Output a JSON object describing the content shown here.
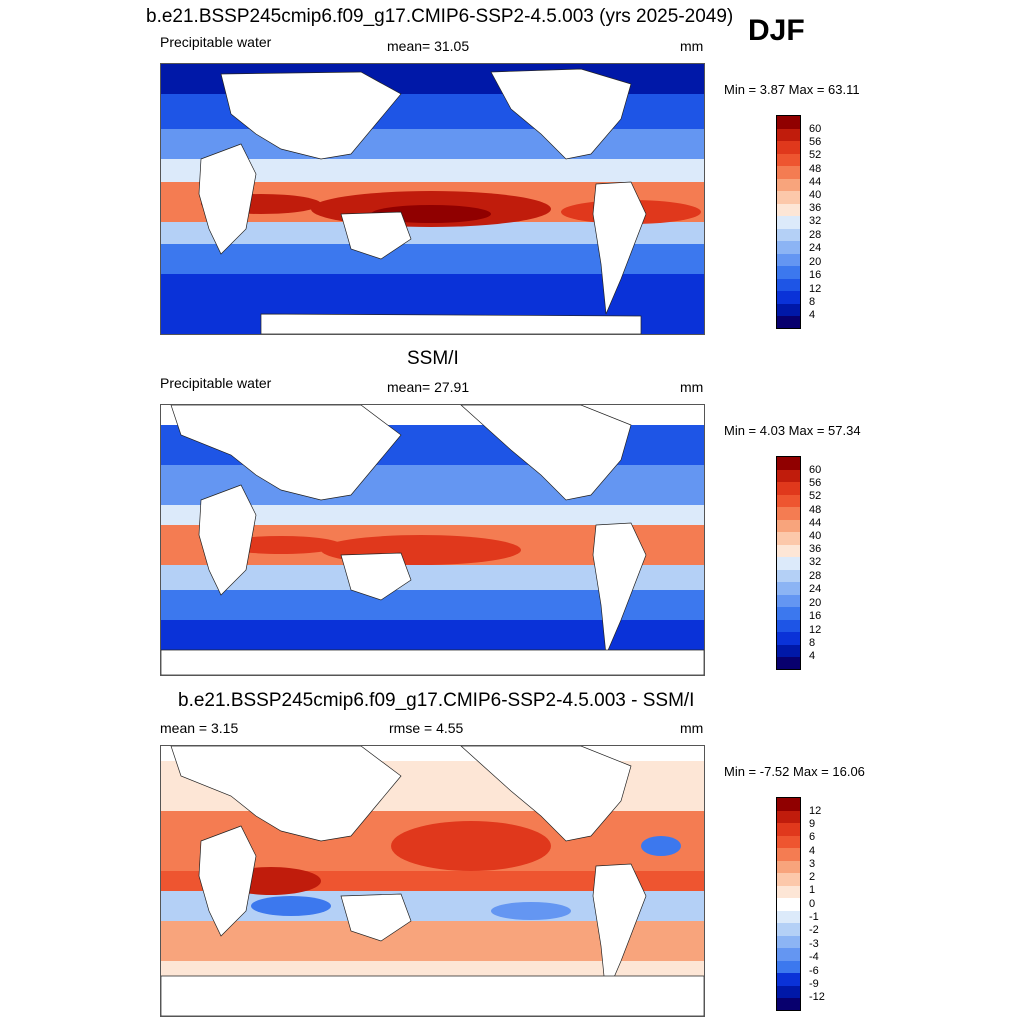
{
  "season": "DJF",
  "colors": {
    "abs_scale": [
      "#08006e",
      "#0018a8",
      "#0a32d8",
      "#1e55e6",
      "#3c78ee",
      "#6496f2",
      "#8cb4f4",
      "#b4d0f6",
      "#dceafa",
      "#fde6d6",
      "#fcc8aa",
      "#f8a47c",
      "#f47c52",
      "#ee5530",
      "#e0381c",
      "#c01c0c",
      "#900000"
    ],
    "diff_scale": [
      "#08006e",
      "#0018a8",
      "#0a32d8",
      "#1e55e6",
      "#3c78ee",
      "#6496f2",
      "#8cb4f4",
      "#b4d0f6",
      "#dceafa",
      "#fde6d6",
      "#fcc8aa",
      "#f8a47c",
      "#f47c52",
      "#ee5530",
      "#e0381c",
      "#c01c0c",
      "#900000"
    ]
  },
  "panels": [
    {
      "title": "b.e21.BSSP245cmip6.f09_g17.CMIP6-SSP2-4.5.003 (yrs 2025-2049)",
      "left_label": "Precipitable water",
      "center_label": "mean=  31.05",
      "units": "mm",
      "minmax": "Min =   3.87 Max =  63.11",
      "ticks": [
        "60",
        "56",
        "52",
        "48",
        "44",
        "40",
        "36",
        "32",
        "28",
        "24",
        "20",
        "16",
        "12",
        "8",
        "4"
      ]
    },
    {
      "title": "SSM/I",
      "left_label": "Precipitable water",
      "center_label": "mean=  27.91",
      "units": "mm",
      "minmax": "Min =   4.03 Max =  57.34",
      "ticks": [
        "60",
        "56",
        "52",
        "48",
        "44",
        "40",
        "36",
        "32",
        "28",
        "24",
        "20",
        "16",
        "12",
        "8",
        "4"
      ]
    },
    {
      "title": "b.e21.BSSP245cmip6.f09_g17.CMIP6-SSP2-4.5.003 - SSM/I",
      "left_label": "mean =   3.15",
      "center_label": "rmse =   4.55",
      "units": "mm",
      "minmax": "Min =  -7.52 Max =  16.06",
      "ticks": [
        "12",
        "9",
        "6",
        "4",
        "3",
        "2",
        "1",
        "0",
        "-1",
        "-2",
        "-3",
        "-4",
        "-6",
        "-9",
        "-12"
      ]
    }
  ]
}
